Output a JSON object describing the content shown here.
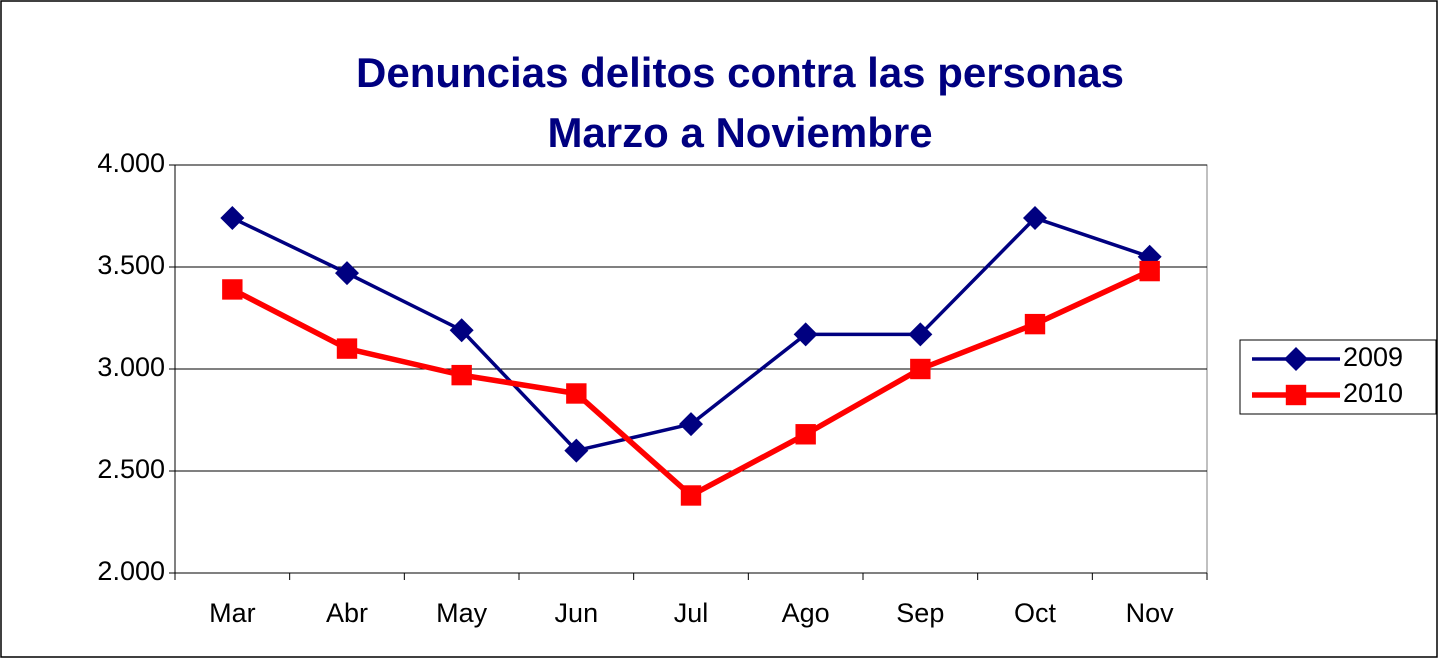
{
  "chart_data": {
    "type": "line",
    "title": [
      "Denuncias delitos contra las personas",
      "Marzo a Noviembre"
    ],
    "categories": [
      "Mar",
      "Abr",
      "May",
      "Jun",
      "Jul",
      "Ago",
      "Sep",
      "Oct",
      "Nov"
    ],
    "series": [
      {
        "name": "2009",
        "color": "#000080",
        "marker": "diamond",
        "values": [
          3740,
          3470,
          3190,
          2600,
          2730,
          3170,
          3170,
          3740,
          3550
        ]
      },
      {
        "name": "2010",
        "color": "#ff0000",
        "marker": "square",
        "values": [
          3390,
          3100,
          2970,
          2880,
          2380,
          2680,
          3000,
          3220,
          3480
        ]
      }
    ],
    "ylim": [
      2000,
      4000
    ],
    "yticks": [
      {
        "value": 2000,
        "label": "2.000"
      },
      {
        "value": 2500,
        "label": "2.500"
      },
      {
        "value": 3000,
        "label": "3.000"
      },
      {
        "value": 3500,
        "label": "3.500"
      },
      {
        "value": 4000,
        "label": "4.000"
      }
    ],
    "grid": true,
    "legend": "right"
  }
}
